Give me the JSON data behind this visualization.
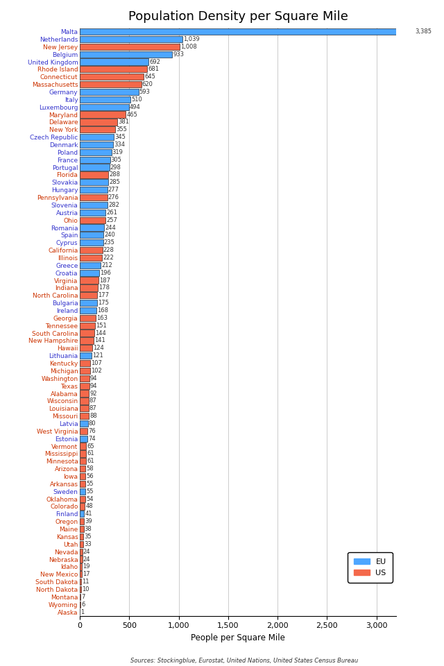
{
  "title": "Population Density per Square Mile",
  "xlabel": "People per Square Mile",
  "source": "Sources: Stockingblue, Eurostat, United Nations, United States Census Bureau",
  "entries": [
    {
      "label": "Malta",
      "value": 3385,
      "type": "EU"
    },
    {
      "label": "Netherlands",
      "value": 1039,
      "type": "EU"
    },
    {
      "label": "New Jersey",
      "value": 1008,
      "type": "US"
    },
    {
      "label": "Belgium",
      "value": 933,
      "type": "EU"
    },
    {
      "label": "United Kingdom",
      "value": 692,
      "type": "EU"
    },
    {
      "label": "Rhode Island",
      "value": 681,
      "type": "US"
    },
    {
      "label": "Connecticut",
      "value": 645,
      "type": "US"
    },
    {
      "label": "Massachusetts",
      "value": 620,
      "type": "US"
    },
    {
      "label": "Germany",
      "value": 593,
      "type": "EU"
    },
    {
      "label": "Italy",
      "value": 510,
      "type": "EU"
    },
    {
      "label": "Luxembourg",
      "value": 494,
      "type": "EU"
    },
    {
      "label": "Maryland",
      "value": 465,
      "type": "US"
    },
    {
      "label": "Delaware",
      "value": 381,
      "type": "US"
    },
    {
      "label": "New York",
      "value": 355,
      "type": "US"
    },
    {
      "label": "Czech Republic",
      "value": 345,
      "type": "EU"
    },
    {
      "label": "Denmark",
      "value": 334,
      "type": "EU"
    },
    {
      "label": "Poland",
      "value": 319,
      "type": "EU"
    },
    {
      "label": "France",
      "value": 305,
      "type": "EU"
    },
    {
      "label": "Portugal",
      "value": 298,
      "type": "EU"
    },
    {
      "label": "Florida",
      "value": 288,
      "type": "US"
    },
    {
      "label": "Slovakia",
      "value": 285,
      "type": "EU"
    },
    {
      "label": "Hungary",
      "value": 277,
      "type": "EU"
    },
    {
      "label": "Pennsylvania",
      "value": 276,
      "type": "US"
    },
    {
      "label": "Slovenia",
      "value": 282,
      "type": "EU"
    },
    {
      "label": "Austria",
      "value": 261,
      "type": "EU"
    },
    {
      "label": "Ohio",
      "value": 257,
      "type": "US"
    },
    {
      "label": "Romania",
      "value": 244,
      "type": "EU"
    },
    {
      "label": "Spain",
      "value": 240,
      "type": "EU"
    },
    {
      "label": "Cyprus",
      "value": 235,
      "type": "EU"
    },
    {
      "label": "California",
      "value": 228,
      "type": "US"
    },
    {
      "label": "Illinois",
      "value": 222,
      "type": "US"
    },
    {
      "label": "Greece",
      "value": 212,
      "type": "EU"
    },
    {
      "label": "Croatia",
      "value": 196,
      "type": "EU"
    },
    {
      "label": "Virginia",
      "value": 187,
      "type": "US"
    },
    {
      "label": "Indiana",
      "value": 178,
      "type": "US"
    },
    {
      "label": "North Carolina",
      "value": 177,
      "type": "US"
    },
    {
      "label": "Bulgaria",
      "value": 175,
      "type": "EU"
    },
    {
      "label": "Ireland",
      "value": 168,
      "type": "EU"
    },
    {
      "label": "Georgia",
      "value": 163,
      "type": "US"
    },
    {
      "label": "Tennessee",
      "value": 151,
      "type": "US"
    },
    {
      "label": "South Carolina",
      "value": 144,
      "type": "US"
    },
    {
      "label": "New Hampshire",
      "value": 141,
      "type": "US"
    },
    {
      "label": "Hawaii",
      "value": 124,
      "type": "US"
    },
    {
      "label": "Lithuania",
      "value": 121,
      "type": "EU"
    },
    {
      "label": "Kentucky",
      "value": 107,
      "type": "US"
    },
    {
      "label": "Michigan",
      "value": 102,
      "type": "US"
    },
    {
      "label": "Washington",
      "value": 94,
      "type": "US"
    },
    {
      "label": "Texas",
      "value": 94,
      "type": "US"
    },
    {
      "label": "Alabama",
      "value": 92,
      "type": "US"
    },
    {
      "label": "Wisconsin",
      "value": 87,
      "type": "US"
    },
    {
      "label": "Louisiana",
      "value": 87,
      "type": "US"
    },
    {
      "label": "Missouri",
      "value": 88,
      "type": "US"
    },
    {
      "label": "Latvia",
      "value": 80,
      "type": "EU"
    },
    {
      "label": "West Virginia",
      "value": 76,
      "type": "US"
    },
    {
      "label": "Estonia",
      "value": 74,
      "type": "EU"
    },
    {
      "label": "Vermont",
      "value": 65,
      "type": "US"
    },
    {
      "label": "Mississippi",
      "value": 61,
      "type": "US"
    },
    {
      "label": "Minnesota",
      "value": 61,
      "type": "US"
    },
    {
      "label": "Arizona",
      "value": 58,
      "type": "US"
    },
    {
      "label": "Iowa",
      "value": 56,
      "type": "US"
    },
    {
      "label": "Arkansas",
      "value": 55,
      "type": "US"
    },
    {
      "label": "Sweden",
      "value": 55,
      "type": "EU"
    },
    {
      "label": "Oklahoma",
      "value": 54,
      "type": "US"
    },
    {
      "label": "Colorado",
      "value": 48,
      "type": "US"
    },
    {
      "label": "Finland",
      "value": 41,
      "type": "EU"
    },
    {
      "label": "Oregon",
      "value": 39,
      "type": "US"
    },
    {
      "label": "Maine",
      "value": 38,
      "type": "US"
    },
    {
      "label": "Kansas",
      "value": 35,
      "type": "US"
    },
    {
      "label": "Utah",
      "value": 33,
      "type": "US"
    },
    {
      "label": "Nevada",
      "value": 24,
      "type": "US"
    },
    {
      "label": "Nebraska",
      "value": 24,
      "type": "US"
    },
    {
      "label": "Idaho",
      "value": 19,
      "type": "US"
    },
    {
      "label": "New Mexico",
      "value": 17,
      "type": "US"
    },
    {
      "label": "South Dakota",
      "value": 11,
      "type": "US"
    },
    {
      "label": "North Dakota",
      "value": 10,
      "type": "US"
    },
    {
      "label": "Montana",
      "value": 7,
      "type": "US"
    },
    {
      "label": "Wyoming",
      "value": 6,
      "type": "US"
    },
    {
      "label": "Alaska",
      "value": 1,
      "type": "US"
    }
  ],
  "eu_color": "#4da6ff",
  "us_color": "#f4694b",
  "label_color_eu": "#3333cc",
  "label_color_us": "#cc3300",
  "bar_value_color": "#333333",
  "grid_color": "#cccccc",
  "bg_color": "#ffffff",
  "title_fontsize": 13,
  "label_fontsize": 6.5,
  "value_fontsize": 6.0,
  "xlim": [
    0,
    3200
  ]
}
